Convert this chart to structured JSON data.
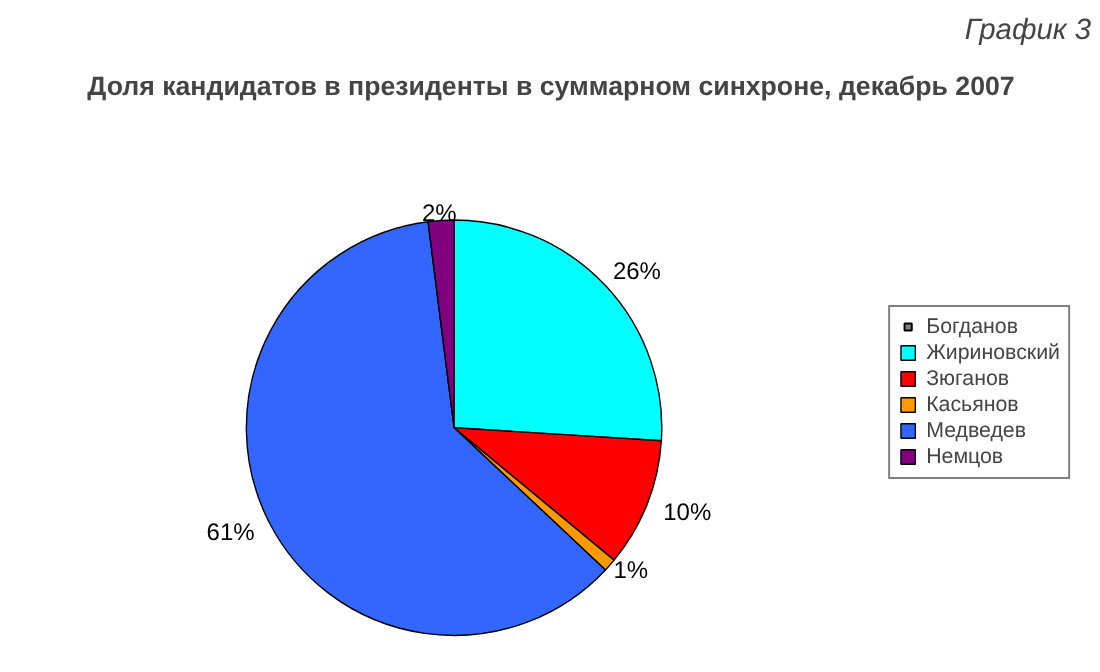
{
  "chart_data": {
    "type": "pie",
    "title": "Доля кандидатов в президенты в суммарном синхроне, декабрь 2007",
    "annotations": [
      "График 3"
    ],
    "categories": [
      "Богданов",
      "Жириновский",
      "Зюганов",
      "Касьянов",
      "Медведев",
      "Немцов"
    ],
    "values": [
      0,
      26,
      10,
      1,
      61,
      2
    ],
    "value_labels": [
      null,
      "26%",
      "10%",
      "1%",
      "61%",
      "2%"
    ],
    "colors": [
      "#808080",
      "#00ffff",
      "#ff0000",
      "#ff9900",
      "#3366ff",
      "#800080"
    ],
    "legend": "right"
  }
}
